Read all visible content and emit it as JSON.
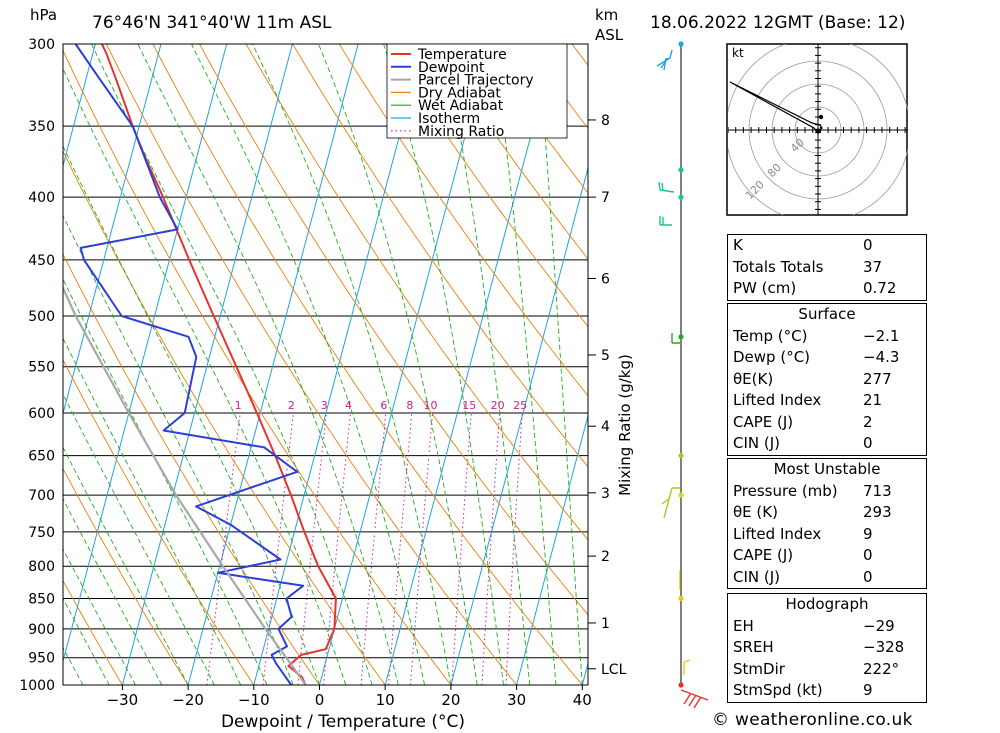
{
  "header": {
    "left_unit": "hPa",
    "location": "76°46'N  341°40'W  11m  ASL",
    "km_unit": "km",
    "asl_unit": "ASL",
    "datetime": "18.06.2022  12GMT  (Base: 12)"
  },
  "chart_data": {
    "type": "line",
    "subtype": "skew-T log-P diagram",
    "xlabel": "Dewpoint / Temperature (°C)",
    "ylabel": "hPa",
    "xlim": [
      -40,
      40
    ],
    "ylim": [
      1000,
      300
    ],
    "y_scale": "log",
    "x_ticks": [
      -30,
      -20,
      -10,
      0,
      10,
      20,
      30,
      40
    ],
    "pressure_ticks": [
      300,
      350,
      400,
      450,
      500,
      550,
      600,
      650,
      700,
      750,
      800,
      850,
      900,
      950,
      1000
    ],
    "km_axis": {
      "ticks": [
        {
          "label": "8",
          "p": 346
        },
        {
          "label": "7",
          "p": 400
        },
        {
          "label": "6",
          "p": 466
        },
        {
          "label": "5",
          "p": 538
        },
        {
          "label": "4",
          "p": 615
        },
        {
          "label": "3",
          "p": 697
        },
        {
          "label": "2",
          "p": 785
        },
        {
          "label": "1",
          "p": 890
        },
        {
          "label": "LCL",
          "p": 970
        }
      ]
    },
    "mixing_ratio": {
      "axis_label": "Mixing Ratio (g/kg)",
      "labels": [
        "1",
        "2",
        "3",
        "4",
        "6",
        "8",
        "10",
        "15",
        "20",
        "25"
      ],
      "values": [
        1,
        2,
        3,
        4,
        6,
        8,
        10,
        15,
        20,
        25
      ]
    },
    "legend": [
      "Temperature",
      "Dewpoint",
      "Parcel Trajectory",
      "Dry Adiabat",
      "Wet Adiabat",
      "Isotherm",
      "Mixing Ratio"
    ],
    "legend_position": "top-center",
    "colors": {
      "temperature": "#e8322c",
      "dewpoint": "#2c3fd6",
      "parcel": "#a8a8a8",
      "dry_adiabat": "#e8820a",
      "wet_adiabat": "#1fae1f",
      "isotherm": "#1ea3e6",
      "mixing_ratio": "#d0208a"
    },
    "series": [
      {
        "name": "Temperature",
        "points": [
          {
            "p": 1000,
            "t": -2.1
          },
          {
            "p": 985,
            "t": -3.0
          },
          {
            "p": 965,
            "t": -5.5
          },
          {
            "p": 945,
            "t": -4.0
          },
          {
            "p": 935,
            "t": -0.5
          },
          {
            "p": 900,
            "t": 0.0
          },
          {
            "p": 850,
            "t": -1.0
          },
          {
            "p": 800,
            "t": -5.0
          },
          {
            "p": 750,
            "t": -8.5
          },
          {
            "p": 700,
            "t": -12.0
          },
          {
            "p": 650,
            "t": -16.0
          },
          {
            "p": 600,
            "t": -20.5
          },
          {
            "p": 550,
            "t": -25.5
          },
          {
            "p": 500,
            "t": -31.0
          },
          {
            "p": 450,
            "t": -37.0
          },
          {
            "p": 400,
            "t": -43.5
          },
          {
            "p": 370,
            "t": -48.0
          },
          {
            "p": 350,
            "t": -51.0
          },
          {
            "p": 320,
            "t": -55.5
          },
          {
            "p": 305,
            "t": -58.0
          },
          {
            "p": 300,
            "t": -59.0
          }
        ]
      },
      {
        "name": "Dewpoint",
        "points": [
          {
            "p": 1000,
            "t": -4.3
          },
          {
            "p": 960,
            "t": -7.5
          },
          {
            "p": 945,
            "t": -8.5
          },
          {
            "p": 930,
            "t": -6.5
          },
          {
            "p": 900,
            "t": -8.5
          },
          {
            "p": 880,
            "t": -7.0
          },
          {
            "p": 850,
            "t": -8.5
          },
          {
            "p": 830,
            "t": -6.5
          },
          {
            "p": 810,
            "t": -20.0
          },
          {
            "p": 790,
            "t": -11.0
          },
          {
            "p": 740,
            "t": -20.0
          },
          {
            "p": 715,
            "t": -26.0
          },
          {
            "p": 670,
            "t": -12.0
          },
          {
            "p": 640,
            "t": -18.0
          },
          {
            "p": 620,
            "t": -34.0
          },
          {
            "p": 600,
            "t": -31.5
          },
          {
            "p": 540,
            "t": -32.0
          },
          {
            "p": 520,
            "t": -34.0
          },
          {
            "p": 500,
            "t": -45.0
          },
          {
            "p": 450,
            "t": -53.0
          },
          {
            "p": 440,
            "t": -54.0
          },
          {
            "p": 425,
            "t": -40.0
          },
          {
            "p": 400,
            "t": -44.0
          },
          {
            "p": 350,
            "t": -51.0
          },
          {
            "p": 320,
            "t": -58.0
          },
          {
            "p": 300,
            "t": -63.0
          }
        ]
      },
      {
        "name": "Parcel Trajectory",
        "points": [
          {
            "p": 1000,
            "t": -2.1
          },
          {
            "p": 970,
            "t": -4.5
          },
          {
            "p": 900,
            "t": -10.5
          },
          {
            "p": 800,
            "t": -19.5
          },
          {
            "p": 700,
            "t": -29.5
          },
          {
            "p": 600,
            "t": -40.0
          },
          {
            "p": 500,
            "t": -52.0
          },
          {
            "p": 400,
            "t": -65.0
          },
          {
            "p": 320,
            "t": -76.0
          }
        ]
      }
    ],
    "wind_profile_p": [
      300,
      380,
      400,
      520,
      650,
      700,
      850,
      1000
    ]
  },
  "hodograph": {
    "unit": "kt",
    "ring_labels": [
      "40",
      "80",
      "120"
    ]
  },
  "indices": {
    "top": [
      {
        "label": "K",
        "value": "0"
      },
      {
        "label": "Totals Totals",
        "value": "37"
      },
      {
        "label": "PW (cm)",
        "value": "0.72"
      }
    ],
    "surface": {
      "title": "Surface",
      "rows": [
        {
          "label": "Temp (°C)",
          "value": "−2.1"
        },
        {
          "label": "Dewp (°C)",
          "value": "−4.3"
        },
        {
          "label": "θE(K)",
          "value": "277"
        },
        {
          "label": "Lifted Index",
          "value": "21"
        },
        {
          "label": "CAPE (J)",
          "value": "2"
        },
        {
          "label": "CIN (J)",
          "value": "0"
        }
      ]
    },
    "most_unstable": {
      "title": "Most Unstable",
      "rows": [
        {
          "label": "Pressure (mb)",
          "value": "713"
        },
        {
          "label": "θE (K)",
          "value": "293"
        },
        {
          "label": "Lifted Index",
          "value": "9"
        },
        {
          "label": "CAPE (J)",
          "value": "0"
        },
        {
          "label": "CIN (J)",
          "value": "0"
        }
      ]
    },
    "hodograph_table": {
      "title": "Hodograph",
      "rows": [
        {
          "label": "EH",
          "value": "−29"
        },
        {
          "label": "SREH",
          "value": "−328"
        },
        {
          "label": "StmDir",
          "value": "222°"
        },
        {
          "label": "StmSpd (kt)",
          "value": "9"
        }
      ]
    }
  },
  "credit": "© weatheronline.co.uk"
}
